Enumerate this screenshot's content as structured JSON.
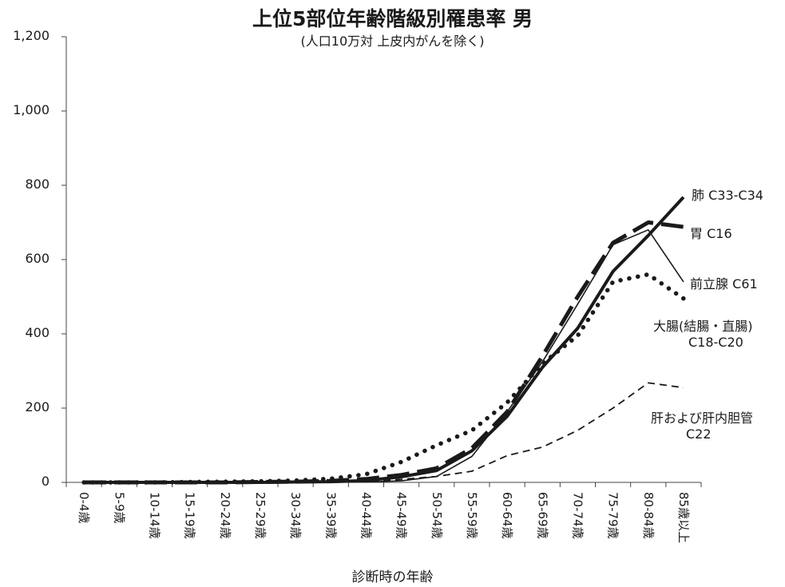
{
  "chart_data": {
    "type": "line",
    "title": "上位5部位年齢階級別罹患率 男",
    "subtitle": "(人口10万対 上皮内がんを除く)",
    "xlabel": "診断時の年齢",
    "ylabel": "",
    "ylim": [
      0,
      1200
    ],
    "yticks": [
      "0",
      "200",
      "400",
      "600",
      "800",
      "1,000",
      "1,200"
    ],
    "ytick_values": [
      0,
      200,
      400,
      600,
      800,
      1000,
      1200
    ],
    "grid": false,
    "categories": [
      "0-4歳",
      "5-9歳",
      "10-14歳",
      "15-19歳",
      "20-24歳",
      "25-29歳",
      "30-34歳",
      "35-39歳",
      "40-44歳",
      "45-49歳",
      "50-54歳",
      "55-59歳",
      "60-64歳",
      "65-69歳",
      "70-74歳",
      "75-79歳",
      "80-84歳",
      "85歳以上"
    ],
    "series": [
      {
        "name": "肺 C33-C34",
        "label_lines": [
          "肺 C33-C34"
        ],
        "style": "thick",
        "values": [
          0,
          0,
          0,
          0,
          0,
          0,
          1,
          2,
          5,
          15,
          32,
          85,
          178,
          310,
          415,
          568,
          665,
          768
        ]
      },
      {
        "name": "胃 C16",
        "label_lines": [
          "胃 C16"
        ],
        "style": "longdash",
        "values": [
          0,
          0,
          0,
          0,
          0,
          1,
          2,
          4,
          9,
          20,
          38,
          92,
          190,
          340,
          500,
          645,
          700,
          688
        ]
      },
      {
        "name": "前立腺 C61",
        "label_lines": [
          "前立腺 C61"
        ],
        "style": "thin",
        "values": [
          0,
          0,
          0,
          0,
          0,
          0,
          0,
          0,
          1,
          4,
          16,
          70,
          190,
          325,
          480,
          640,
          680,
          540
        ]
      },
      {
        "name": "大腸(結腸・直腸) C18-C20",
        "label_lines": [
          "大腸(結腸・直腸)",
          "C18-C20"
        ],
        "style": "dotted",
        "values": [
          0,
          0,
          0,
          1,
          2,
          3,
          5,
          10,
          22,
          55,
          100,
          140,
          215,
          320,
          395,
          540,
          560,
          495
        ]
      },
      {
        "name": "肝および肝内胆管 C22",
        "label_lines": [
          "肝および肝内胆管",
          "C22"
        ],
        "style": "dashed",
        "values": [
          0,
          0,
          0,
          0,
          0,
          0,
          0,
          1,
          3,
          8,
          16,
          30,
          72,
          95,
          140,
          200,
          268,
          255
        ]
      }
    ]
  }
}
